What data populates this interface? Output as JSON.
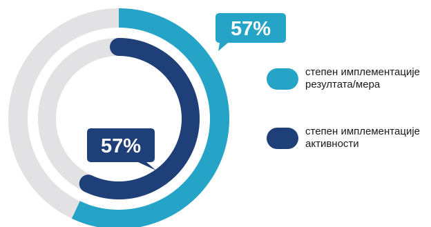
{
  "chart_data": {
    "type": "donut",
    "title": "",
    "series": [
      {
        "name": "степен имплементације резултата/мера",
        "value": 57,
        "label": "57%",
        "color": "#25a4c7",
        "track_color": "#e2e2e4"
      },
      {
        "name": "степен имплементације активности",
        "value": 57,
        "label": "57%",
        "color": "#1e3f78",
        "track_color": "#e2e2e4"
      }
    ],
    "legend_placement": "right"
  }
}
